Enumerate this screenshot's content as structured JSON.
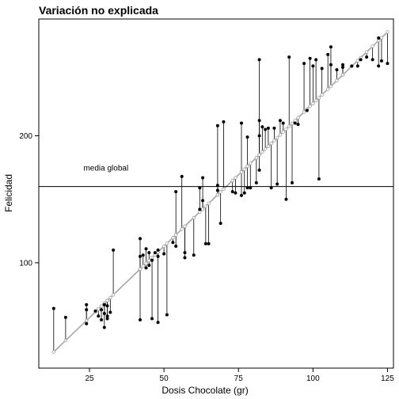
{
  "chart_data": {
    "type": "scatter",
    "title": "Variación no explicada",
    "xlabel": "Dosis Chocolate (gr)",
    "ylabel": "Felicidad",
    "xlim": [
      8,
      127
    ],
    "ylim": [
      17,
      292
    ],
    "xticks": [
      25,
      50,
      75,
      100,
      125
    ],
    "yticks": [
      100,
      200
    ],
    "grid": false,
    "legend": "none",
    "mean_line": {
      "y": 160,
      "label": "media global"
    },
    "regression": {
      "slope": 2.25,
      "intercept": 0.5
    },
    "observed_color": "#000000",
    "fitted_color": "#a0a0a0",
    "mean_line_color": "#000000",
    "points": [
      {
        "x": 13,
        "y": 64
      },
      {
        "x": 17,
        "y": 57
      },
      {
        "x": 24,
        "y": 52
      },
      {
        "x": 24,
        "y": 67
      },
      {
        "x": 24,
        "y": 63
      },
      {
        "x": 27,
        "y": 62
      },
      {
        "x": 28,
        "y": 58
      },
      {
        "x": 29,
        "y": 55
      },
      {
        "x": 29,
        "y": 63
      },
      {
        "x": 30,
        "y": 60
      },
      {
        "x": 30,
        "y": 67
      },
      {
        "x": 31,
        "y": 66
      },
      {
        "x": 31,
        "y": 56
      },
      {
        "x": 30,
        "y": 49
      },
      {
        "x": 31,
        "y": 58
      },
      {
        "x": 32,
        "y": 61
      },
      {
        "x": 33,
        "y": 110
      },
      {
        "x": 42,
        "y": 55
      },
      {
        "x": 42,
        "y": 119
      },
      {
        "x": 42,
        "y": 105
      },
      {
        "x": 43,
        "y": 106
      },
      {
        "x": 44,
        "y": 111
      },
      {
        "x": 44,
        "y": 96
      },
      {
        "x": 45,
        "y": 108
      },
      {
        "x": 45,
        "y": 98
      },
      {
        "x": 46,
        "y": 56
      },
      {
        "x": 46,
        "y": 102
      },
      {
        "x": 47,
        "y": 108
      },
      {
        "x": 48,
        "y": 110
      },
      {
        "x": 48,
        "y": 105
      },
      {
        "x": 48,
        "y": 53
      },
      {
        "x": 50,
        "y": 107
      },
      {
        "x": 51,
        "y": 59
      },
      {
        "x": 53,
        "y": 116
      },
      {
        "x": 54,
        "y": 113
      },
      {
        "x": 54,
        "y": 156
      },
      {
        "x": 56,
        "y": 168
      },
      {
        "x": 57,
        "y": 104
      },
      {
        "x": 57,
        "y": 108
      },
      {
        "x": 60,
        "y": 106
      },
      {
        "x": 62,
        "y": 142
      },
      {
        "x": 62,
        "y": 159
      },
      {
        "x": 63,
        "y": 167
      },
      {
        "x": 63,
        "y": 149
      },
      {
        "x": 64,
        "y": 115
      },
      {
        "x": 65,
        "y": 115
      },
      {
        "x": 68,
        "y": 161
      },
      {
        "x": 68,
        "y": 157
      },
      {
        "x": 68,
        "y": 208
      },
      {
        "x": 69,
        "y": 131
      },
      {
        "x": 70,
        "y": 211
      },
      {
        "x": 73,
        "y": 156
      },
      {
        "x": 74,
        "y": 155
      },
      {
        "x": 76,
        "y": 210
      },
      {
        "x": 76,
        "y": 153
      },
      {
        "x": 77,
        "y": 155
      },
      {
        "x": 78,
        "y": 199
      },
      {
        "x": 78,
        "y": 159
      },
      {
        "x": 79,
        "y": 159
      },
      {
        "x": 81,
        "y": 163
      },
      {
        "x": 82,
        "y": 260
      },
      {
        "x": 82,
        "y": 212
      },
      {
        "x": 82,
        "y": 200
      },
      {
        "x": 82,
        "y": 173
      },
      {
        "x": 83,
        "y": 207
      },
      {
        "x": 84,
        "y": 205
      },
      {
        "x": 85,
        "y": 206
      },
      {
        "x": 86,
        "y": 159
      },
      {
        "x": 87,
        "y": 206
      },
      {
        "x": 88,
        "y": 162
      },
      {
        "x": 89,
        "y": 212
      },
      {
        "x": 90,
        "y": 210
      },
      {
        "x": 91,
        "y": 150
      },
      {
        "x": 92,
        "y": 262
      },
      {
        "x": 93,
        "y": 163
      },
      {
        "x": 94,
        "y": 210
      },
      {
        "x": 95,
        "y": 209
      },
      {
        "x": 97,
        "y": 257
      },
      {
        "x": 98,
        "y": 220
      },
      {
        "x": 99,
        "y": 261
      },
      {
        "x": 100,
        "y": 255
      },
      {
        "x": 101,
        "y": 260
      },
      {
        "x": 102,
        "y": 166
      },
      {
        "x": 103,
        "y": 253
      },
      {
        "x": 105,
        "y": 264
      },
      {
        "x": 106,
        "y": 256
      },
      {
        "x": 106,
        "y": 270
      },
      {
        "x": 108,
        "y": 252
      },
      {
        "x": 110,
        "y": 254
      },
      {
        "x": 110,
        "y": 256
      },
      {
        "x": 113,
        "y": 255
      },
      {
        "x": 115,
        "y": 255
      },
      {
        "x": 116,
        "y": 260
      },
      {
        "x": 118,
        "y": 262
      },
      {
        "x": 120,
        "y": 260
      },
      {
        "x": 122,
        "y": 255
      },
      {
        "x": 123,
        "y": 259
      },
      {
        "x": 122,
        "y": 277
      },
      {
        "x": 125,
        "y": 257
      }
    ]
  }
}
